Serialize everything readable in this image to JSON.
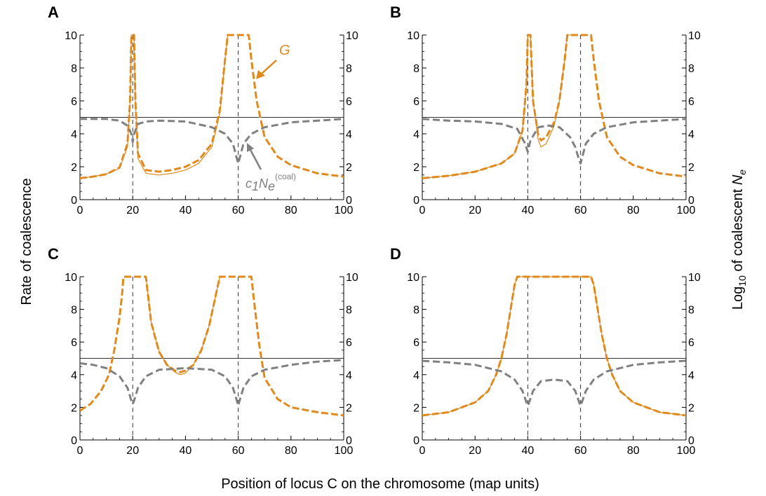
{
  "figure": {
    "xlabel": "Position of locus C on the chromosome (map units)",
    "ylabel_left": "Rate of coalescence",
    "ylabel_right_prefix": "Log",
    "ylabel_right_sub": "10",
    "ylabel_right_mid": " of coalescent ",
    "ylabel_right_var": "N",
    "ylabel_right_var_sub": "e",
    "colors": {
      "orange": "#e08a1e",
      "gray": "#808080",
      "axis": "#000000"
    }
  },
  "annotations": {
    "g_label": "G",
    "c_label_c": "c",
    "c_label_1": "1",
    "c_label_n": "N",
    "c_label_e": "e",
    "c_label_coal": "(coal)"
  },
  "chart_data": [
    {
      "panel": "A",
      "type": "line",
      "selected_loci": [
        20,
        60
      ],
      "xlim": [
        0,
        100
      ],
      "ylim": [
        0,
        10
      ],
      "ylim_right": [
        0,
        10
      ],
      "xticks": [
        0,
        20,
        40,
        60,
        80,
        100
      ],
      "yticks": [
        0,
        2,
        4,
        6,
        8,
        10
      ],
      "hline": 5,
      "series": [
        {
          "name": "G (exact)",
          "style": "orange-thin",
          "x": [
            0,
            5,
            10,
            15,
            18,
            19,
            19.5,
            20,
            20.5,
            21,
            22,
            25,
            30,
            35,
            40,
            45,
            50,
            53,
            55,
            56
          ],
          "y": [
            1.3,
            1.4,
            1.55,
            1.9,
            3.2,
            6,
            10,
            10,
            10,
            6,
            2.5,
            1.6,
            1.5,
            1.6,
            1.8,
            2.2,
            3.2,
            5.2,
            8.5,
            10
          ]
        },
        {
          "name": "G (approx)",
          "style": "orange-dashed",
          "x": [
            0,
            5,
            10,
            15,
            18,
            19,
            19.5,
            20,
            20.5,
            21,
            22,
            25,
            30,
            35,
            40,
            45,
            50,
            53,
            55,
            56,
            64,
            65,
            67,
            70,
            75,
            80,
            90,
            100
          ],
          "y": [
            1.3,
            1.4,
            1.55,
            1.95,
            3.4,
            6,
            10,
            10,
            10,
            6,
            2.8,
            1.8,
            1.7,
            1.8,
            2,
            2.4,
            3.4,
            5.4,
            8.5,
            10,
            10,
            8.5,
            6,
            3.8,
            2.6,
            2.1,
            1.6,
            1.4
          ]
        },
        {
          "name": "c1 Ne(coal)",
          "style": "gray-dashed",
          "x": [
            0,
            10,
            15,
            18,
            19.5,
            20,
            20.5,
            22,
            25,
            30,
            40,
            50,
            55,
            58,
            59.5,
            60,
            60.5,
            62,
            65,
            70,
            80,
            90,
            100
          ],
          "y": [
            4.9,
            4.9,
            4.8,
            4.5,
            4.0,
            3.5,
            4.0,
            4.6,
            4.75,
            4.8,
            4.75,
            4.4,
            4.0,
            3.4,
            2.5,
            2.2,
            2.5,
            3.4,
            4.0,
            4.4,
            4.7,
            4.8,
            4.9
          ]
        }
      ]
    },
    {
      "panel": "B",
      "type": "line",
      "selected_loci": [
        40,
        60
      ],
      "xlim": [
        0,
        100
      ],
      "ylim": [
        0,
        10
      ],
      "ylim_right": [
        0,
        10
      ],
      "xticks": [
        0,
        20,
        40,
        60,
        80,
        100
      ],
      "yticks": [
        0,
        2,
        4,
        6,
        8,
        10
      ],
      "hline": 5,
      "series": [
        {
          "name": "G (exact)",
          "style": "orange-thin",
          "x": [
            0,
            10,
            20,
            30,
            35,
            38,
            39.5,
            40,
            41,
            42,
            44,
            45,
            47,
            50,
            52,
            54,
            55,
            56
          ],
          "y": [
            1.3,
            1.45,
            1.7,
            2.2,
            2.8,
            4.2,
            7,
            10,
            10,
            6,
            3.6,
            3.2,
            3.4,
            4.5,
            6,
            8.5,
            10,
            10
          ]
        },
        {
          "name": "G (approx)",
          "style": "orange-dashed",
          "x": [
            0,
            10,
            20,
            30,
            35,
            38,
            39.5,
            40,
            41,
            42,
            44,
            45,
            47,
            50,
            52,
            54,
            55,
            56,
            64,
            65,
            67,
            70,
            75,
            80,
            90,
            100
          ],
          "y": [
            1.3,
            1.45,
            1.7,
            2.2,
            2.8,
            4.2,
            7,
            10,
            10,
            6,
            3.9,
            3.6,
            3.8,
            4.7,
            6,
            8.5,
            10,
            10,
            10,
            8.5,
            6,
            3.8,
            2.6,
            2.1,
            1.6,
            1.4
          ]
        },
        {
          "name": "c1 Ne(coal)",
          "style": "gray-dashed",
          "x": [
            0,
            10,
            20,
            30,
            36,
            39,
            40,
            41,
            44,
            48,
            52,
            56,
            58,
            59.5,
            60,
            60.5,
            62,
            65,
            70,
            80,
            90,
            100
          ],
          "y": [
            4.9,
            4.8,
            4.75,
            4.6,
            4.3,
            3.4,
            2.9,
            3.6,
            4.4,
            4.5,
            4.4,
            3.8,
            3.2,
            2.4,
            2.2,
            2.5,
            3.4,
            4.0,
            4.4,
            4.7,
            4.8,
            4.9
          ]
        }
      ]
    },
    {
      "panel": "C",
      "type": "line",
      "selected_loci": [
        20,
        60
      ],
      "xlim": [
        0,
        100
      ],
      "ylim": [
        0,
        10
      ],
      "ylim_right": [
        0,
        10
      ],
      "xticks": [
        0,
        20,
        40,
        60,
        80,
        100
      ],
      "yticks": [
        0,
        2,
        4,
        6,
        8,
        10
      ],
      "hline": 5,
      "series": [
        {
          "name": "G (exact)",
          "style": "orange-thin",
          "x": [
            25,
            27,
            30,
            33,
            36,
            38,
            40,
            43,
            46,
            49,
            51,
            53
          ],
          "y": [
            10,
            7.2,
            5.4,
            4.6,
            4.15,
            4.0,
            4.1,
            4.6,
            5.5,
            7,
            8.5,
            10
          ]
        },
        {
          "name": "G (approx)",
          "style": "orange-dashed",
          "x": [
            0,
            4,
            8,
            11,
            13,
            15,
            16,
            16.5,
            25,
            27,
            30,
            33,
            36,
            38,
            40,
            43,
            46,
            49,
            51,
            53,
            65,
            66,
            68,
            70,
            75,
            80,
            90,
            100
          ],
          "y": [
            1.8,
            2.2,
            3,
            4,
            5.5,
            7.5,
            9,
            10,
            10,
            7.2,
            5.4,
            4.6,
            4.25,
            4.15,
            4.25,
            4.6,
            5.5,
            7,
            8.5,
            10,
            10,
            8.5,
            5.8,
            3.8,
            2.5,
            2,
            1.7,
            1.5
          ]
        },
        {
          "name": "c1 Ne(coal)",
          "style": "gray-dashed",
          "x": [
            0,
            5,
            10,
            15,
            18,
            19.5,
            20,
            20.5,
            22,
            25,
            30,
            40,
            50,
            55,
            58,
            59.5,
            60,
            60.5,
            62,
            65,
            70,
            80,
            90,
            100
          ],
          "y": [
            4.7,
            4.6,
            4.4,
            3.9,
            3.2,
            2.4,
            2.2,
            2.4,
            3.2,
            3.9,
            4.3,
            4.4,
            4.3,
            3.9,
            3.2,
            2.4,
            2.1,
            2.4,
            3.2,
            3.9,
            4.3,
            4.6,
            4.8,
            4.9
          ]
        }
      ]
    },
    {
      "panel": "D",
      "type": "line",
      "selected_loci": [
        40,
        60
      ],
      "xlim": [
        0,
        100
      ],
      "ylim": [
        0,
        10
      ],
      "ylim_right": [
        0,
        10
      ],
      "xticks": [
        0,
        20,
        40,
        60,
        80,
        100
      ],
      "yticks": [
        0,
        2,
        4,
        6,
        8,
        10
      ],
      "hline": 5,
      "series": [
        {
          "name": "G (exact)",
          "style": "orange-thin",
          "x": [
            0,
            10,
            20,
            25,
            28,
            30,
            32,
            34,
            35,
            36,
            64,
            65,
            66,
            68,
            70,
            72,
            75,
            80,
            90,
            100
          ],
          "y": [
            1.5,
            1.7,
            2.3,
            3,
            4,
            5,
            6.5,
            8.5,
            9.5,
            10,
            10,
            9.5,
            8.5,
            6.5,
            5,
            4,
            3,
            2.3,
            1.7,
            1.5
          ]
        },
        {
          "name": "G (approx)",
          "style": "orange-dashed",
          "x": [
            0,
            10,
            20,
            25,
            28,
            30,
            32,
            34,
            35,
            36,
            64,
            65,
            66,
            68,
            70,
            72,
            75,
            80,
            90,
            100
          ],
          "y": [
            1.5,
            1.7,
            2.3,
            3,
            4,
            5,
            6.5,
            8.5,
            9.5,
            10,
            10,
            9.5,
            8.5,
            6.5,
            5,
            4,
            3,
            2.3,
            1.7,
            1.5
          ]
        },
        {
          "name": "c1 Ne(coal)",
          "style": "gray-dashed",
          "x": [
            0,
            10,
            20,
            30,
            35,
            38,
            39.5,
            40,
            40.5,
            42,
            45,
            50,
            55,
            58,
            59.5,
            60,
            60.5,
            62,
            65,
            70,
            80,
            90,
            100
          ],
          "y": [
            4.85,
            4.75,
            4.6,
            4.2,
            3.7,
            3.0,
            2.3,
            2.1,
            2.3,
            3.0,
            3.6,
            3.7,
            3.6,
            3.0,
            2.3,
            2.1,
            2.3,
            3.0,
            3.7,
            4.2,
            4.6,
            4.75,
            4.85
          ]
        }
      ]
    }
  ]
}
